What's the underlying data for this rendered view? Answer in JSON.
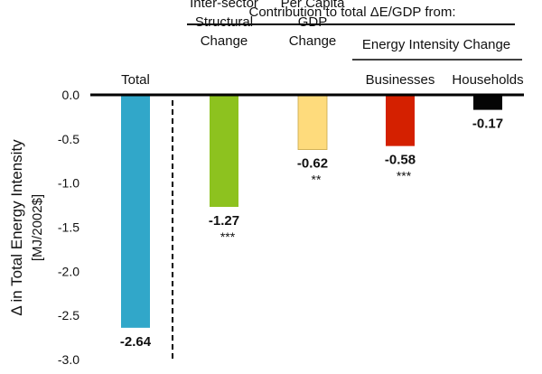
{
  "chart_data": {
    "type": "bar",
    "title": "Contribution to total ΔE/GDP from:",
    "ylabel": "Δ in Total Energy Intensity",
    "ylabel_unit": "[MJ/2002$]",
    "ylim": [
      -3.0,
      0.0
    ],
    "yticks": [
      "0.0",
      "-0.5",
      "-1.0",
      "-1.5",
      "-2.0",
      "-2.5",
      "-3.0"
    ],
    "group_header": "Energy Intensity Change",
    "categories": [
      {
        "lines": [
          "Total"
        ]
      },
      {
        "lines": [
          "Inter-sector",
          "Structural",
          "Change"
        ]
      },
      {
        "lines": [
          "Per Capita",
          "GDP",
          "Change"
        ]
      },
      {
        "lines": [
          "Businesses"
        ]
      },
      {
        "lines": [
          "Households"
        ]
      }
    ],
    "values": [
      -2.64,
      -1.27,
      -0.62,
      -0.58,
      -0.17
    ],
    "value_labels": [
      "-2.64",
      "-1.27",
      "-0.62",
      "-0.58",
      "-0.17"
    ],
    "significance": [
      "",
      "***",
      "**",
      "***",
      ""
    ],
    "colors": [
      "#31a7c9",
      "#8dc21f",
      "#fedb7c",
      "#d42000",
      "#050505"
    ],
    "grid": false,
    "legend": "none"
  }
}
